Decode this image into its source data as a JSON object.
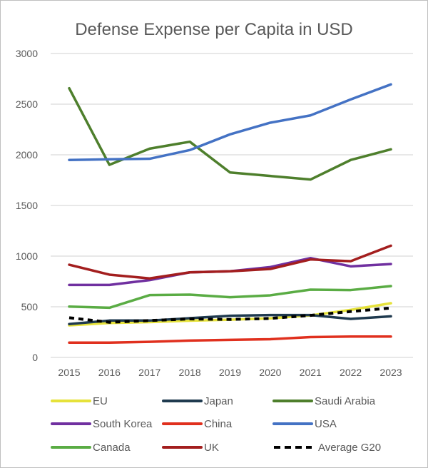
{
  "chart_data": {
    "type": "line",
    "title": "Defense Expense per Capita in USD",
    "xlabel": "",
    "ylabel": "",
    "x": [
      "2015",
      "2016",
      "2017",
      "2018",
      "2019",
      "2020",
      "2021",
      "2022",
      "2023"
    ],
    "ylim": [
      0,
      3000
    ],
    "yticks": [
      0,
      500,
      1000,
      1500,
      2000,
      2500,
      3000
    ],
    "grid": true,
    "legend_placement": "bottom",
    "series": [
      {
        "name": "EU",
        "color": "#e6e23a",
        "dashed": false,
        "values": [
          317,
          340,
          349,
          363,
          372,
          386,
          415,
          469,
          535
        ]
      },
      {
        "name": "Japan",
        "color": "#1f3a4f",
        "dashed": false,
        "values": [
          329,
          364,
          364,
          387,
          411,
          418,
          418,
          380,
          406
        ]
      },
      {
        "name": "Saudi Arabia",
        "color": "#4e7f2c",
        "dashed": false,
        "values": [
          2657,
          1901,
          2061,
          2129,
          1826,
          1791,
          1756,
          1949,
          2054
        ]
      },
      {
        "name": "South Korea",
        "color": "#7030a0",
        "dashed": false,
        "values": [
          716,
          716,
          763,
          840,
          850,
          892,
          981,
          899,
          922
        ]
      },
      {
        "name": "China",
        "color": "#e0301e",
        "dashed": false,
        "values": [
          146,
          146,
          154,
          166,
          173,
          180,
          201,
          206,
          206
        ]
      },
      {
        "name": "USA",
        "color": "#4472c4",
        "dashed": false,
        "values": [
          1949,
          1956,
          1961,
          2047,
          2202,
          2317,
          2389,
          2547,
          2695
        ]
      },
      {
        "name": "Canada",
        "color": "#5aac44",
        "dashed": false,
        "values": [
          502,
          490,
          615,
          620,
          594,
          613,
          669,
          665,
          704
        ]
      },
      {
        "name": "UK",
        "color": "#a31e1e",
        "dashed": false,
        "values": [
          915,
          817,
          780,
          840,
          850,
          873,
          967,
          950,
          1103
        ]
      },
      {
        "name": "Average G20",
        "color": "#000000",
        "dashed": true,
        "values": [
          392,
          347,
          364,
          380,
          375,
          385,
          415,
          453,
          488
        ]
      }
    ]
  }
}
